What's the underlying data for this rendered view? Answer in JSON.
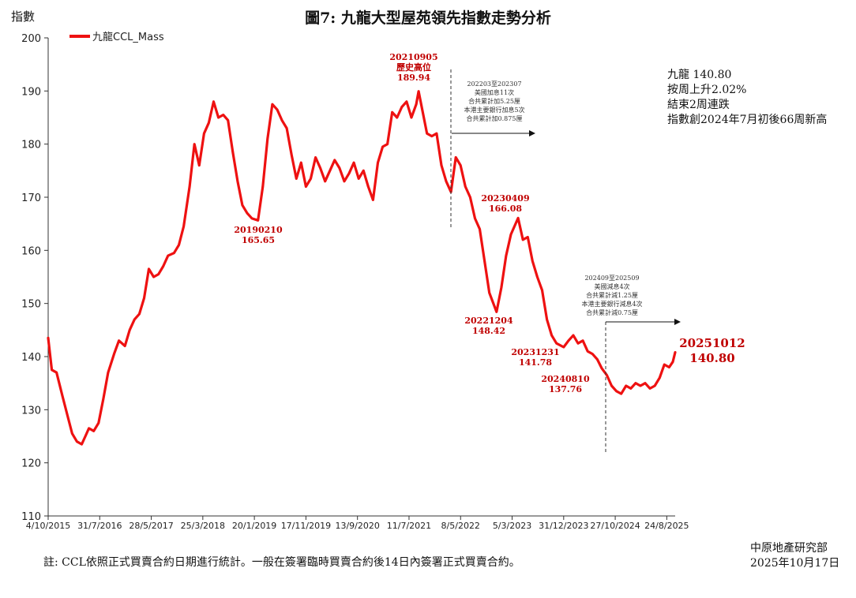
{
  "chart_data": {
    "type": "line",
    "title": "圖7: 九龍大型屋苑領先指數走勢分析",
    "ylabel": "指數",
    "ylim": [
      110,
      200
    ],
    "yticks": [
      110,
      120,
      130,
      140,
      150,
      160,
      170,
      180,
      190,
      200
    ],
    "xticks": [
      "4/10/2015",
      "31/7/2016",
      "28/5/2017",
      "25/3/2018",
      "20/1/2019",
      "17/11/2019",
      "13/9/2020",
      "11/7/2021",
      "8/5/2022",
      "5/3/2023",
      "31/12/2023",
      "27/10/2024",
      "24/8/2025"
    ],
    "xlim": [
      "2015-10-04",
      "2025-10-12"
    ],
    "grid": false,
    "legend_position": "top-left",
    "series": [
      {
        "name": "九龍CCL_Mass",
        "color": "#ee1111",
        "points": [
          [
            "2015-10-04",
            143.5
          ],
          [
            "2015-10-25",
            137.5
          ],
          [
            "2015-11-22",
            137.0
          ],
          [
            "2015-12-27",
            132.5
          ],
          [
            "2016-01-24",
            129.0
          ],
          [
            "2016-02-21",
            125.5
          ],
          [
            "2016-03-20",
            124.0
          ],
          [
            "2016-04-17",
            123.5
          ],
          [
            "2016-05-08",
            125.0
          ],
          [
            "2016-05-29",
            126.5
          ],
          [
            "2016-06-26",
            126.0
          ],
          [
            "2016-07-24",
            127.5
          ],
          [
            "2016-08-21",
            132.0
          ],
          [
            "2016-09-18",
            137.0
          ],
          [
            "2016-10-23",
            140.5
          ],
          [
            "2016-11-20",
            143.0
          ],
          [
            "2016-12-25",
            142.0
          ],
          [
            "2017-01-22",
            145.0
          ],
          [
            "2017-02-19",
            147.0
          ],
          [
            "2017-03-19",
            148.0
          ],
          [
            "2017-04-16",
            151.0
          ],
          [
            "2017-05-14",
            156.5
          ],
          [
            "2017-06-11",
            155.0
          ],
          [
            "2017-07-09",
            155.5
          ],
          [
            "2017-08-06",
            157.0
          ],
          [
            "2017-09-03",
            159.0
          ],
          [
            "2017-10-08",
            159.5
          ],
          [
            "2017-11-05",
            161.0
          ],
          [
            "2017-12-03",
            164.5
          ],
          [
            "2018-01-07",
            172.0
          ],
          [
            "2018-02-04",
            180.0
          ],
          [
            "2018-03-04",
            176.0
          ],
          [
            "2018-04-01",
            182.0
          ],
          [
            "2018-04-29",
            184.0
          ],
          [
            "2018-05-27",
            188.0
          ],
          [
            "2018-06-24",
            185.0
          ],
          [
            "2018-07-22",
            185.5
          ],
          [
            "2018-08-19",
            184.5
          ],
          [
            "2018-09-16",
            178.5
          ],
          [
            "2018-10-14",
            173.0
          ],
          [
            "2018-11-11",
            168.5
          ],
          [
            "2018-12-09",
            167.0
          ],
          [
            "2019-01-06",
            166.0
          ],
          [
            "2019-02-10",
            165.65
          ],
          [
            "2019-03-10",
            172.0
          ],
          [
            "2019-04-07",
            181.0
          ],
          [
            "2019-05-05",
            187.5
          ],
          [
            "2019-06-02",
            186.5
          ],
          [
            "2019-06-30",
            184.5
          ],
          [
            "2019-07-28",
            183.0
          ],
          [
            "2019-08-25",
            178.0
          ],
          [
            "2019-09-22",
            173.5
          ],
          [
            "2019-10-20",
            176.5
          ],
          [
            "2019-11-17",
            172.0
          ],
          [
            "2019-12-15",
            173.5
          ],
          [
            "2020-01-12",
            177.5
          ],
          [
            "2020-02-09",
            175.5
          ],
          [
            "2020-03-08",
            173.0
          ],
          [
            "2020-04-05",
            175.0
          ],
          [
            "2020-05-03",
            177.0
          ],
          [
            "2020-05-31",
            175.5
          ],
          [
            "2020-06-28",
            173.0
          ],
          [
            "2020-07-26",
            174.5
          ],
          [
            "2020-08-23",
            176.5
          ],
          [
            "2020-09-20",
            173.5
          ],
          [
            "2020-10-18",
            175.0
          ],
          [
            "2020-11-15",
            172.0
          ],
          [
            "2020-12-13",
            169.5
          ],
          [
            "2021-01-10",
            176.5
          ],
          [
            "2021-02-07",
            179.5
          ],
          [
            "2021-03-07",
            180.0
          ],
          [
            "2021-04-04",
            186.0
          ],
          [
            "2021-05-02",
            185.0
          ],
          [
            "2021-05-30",
            187.0
          ],
          [
            "2021-06-27",
            188.0
          ],
          [
            "2021-07-25",
            185.0
          ],
          [
            "2021-08-22",
            187.5
          ],
          [
            "2021-09-05",
            189.94
          ],
          [
            "2021-09-26",
            186.5
          ],
          [
            "2021-10-24",
            182.0
          ],
          [
            "2021-11-21",
            181.5
          ],
          [
            "2021-12-19",
            182.0
          ],
          [
            "2022-01-16",
            176.0
          ],
          [
            "2022-02-13",
            173.0
          ],
          [
            "2022-03-13",
            171.0
          ],
          [
            "2022-04-10",
            177.5
          ],
          [
            "2022-05-08",
            176.0
          ],
          [
            "2022-06-05",
            172.0
          ],
          [
            "2022-07-03",
            170.0
          ],
          [
            "2022-07-31",
            166.0
          ],
          [
            "2022-08-28",
            164.0
          ],
          [
            "2022-09-25",
            158.0
          ],
          [
            "2022-10-23",
            152.0
          ],
          [
            "2022-12-04",
            148.42
          ],
          [
            "2023-01-01",
            153.0
          ],
          [
            "2023-01-29",
            159.0
          ],
          [
            "2023-02-26",
            163.0
          ],
          [
            "2023-04-09",
            166.08
          ],
          [
            "2023-05-07",
            162.0
          ],
          [
            "2023-06-04",
            162.5
          ],
          [
            "2023-07-02",
            158.0
          ],
          [
            "2023-07-30",
            155.0
          ],
          [
            "2023-08-27",
            152.5
          ],
          [
            "2023-09-24",
            147.0
          ],
          [
            "2023-10-22",
            144.0
          ],
          [
            "2023-11-19",
            142.5
          ],
          [
            "2023-12-31",
            141.78
          ],
          [
            "2024-01-28",
            143.0
          ],
          [
            "2024-02-25",
            144.0
          ],
          [
            "2024-03-24",
            142.5
          ],
          [
            "2024-04-21",
            143.0
          ],
          [
            "2024-05-19",
            141.0
          ],
          [
            "2024-06-16",
            140.5
          ],
          [
            "2024-07-14",
            139.5
          ],
          [
            "2024-08-10",
            137.76
          ],
          [
            "2024-09-08",
            136.5
          ],
          [
            "2024-10-06",
            134.5
          ],
          [
            "2024-11-03",
            133.5
          ],
          [
            "2024-12-01",
            133.0
          ],
          [
            "2024-12-29",
            134.5
          ],
          [
            "2025-01-26",
            134.0
          ],
          [
            "2025-02-23",
            135.0
          ],
          [
            "2025-03-23",
            134.5
          ],
          [
            "2025-04-20",
            135.0
          ],
          [
            "2025-05-18",
            134.0
          ],
          [
            "2025-06-15",
            134.5
          ],
          [
            "2025-07-13",
            136.0
          ],
          [
            "2025-08-10",
            138.5
          ],
          [
            "2025-09-07",
            138.0
          ],
          [
            "2025-09-28",
            139.0
          ],
          [
            "2025-10-12",
            140.8
          ]
        ]
      }
    ],
    "annotations": [
      {
        "date": "2021-09-05",
        "lines": [
          "20210905",
          "歷史高位",
          "189.94"
        ],
        "color": "#c00000"
      },
      {
        "date": "2019-02-10",
        "lines": [
          "20190210",
          "165.65"
        ],
        "color": "#c00000"
      },
      {
        "date": "2023-04-09",
        "lines": [
          "20230409",
          "166.08"
        ],
        "color": "#c00000"
      },
      {
        "date": "2022-12-04",
        "lines": [
          "20221204",
          "148.42"
        ],
        "color": "#c00000"
      },
      {
        "date": "2023-12-31",
        "lines": [
          "20231231",
          "141.78"
        ],
        "color": "#c00000"
      },
      {
        "date": "2024-08-10",
        "lines": [
          "20240810",
          "137.76"
        ],
        "color": "#c00000"
      },
      {
        "date": "2025-10-12",
        "lines": [
          "20251012",
          "140.80"
        ],
        "color": "#c00000"
      }
    ],
    "events": [
      {
        "lines": [
          "202203至202307",
          "美國加息11次",
          "合共累計加5.25厘",
          "本港主要銀行加息5次",
          "合共累計加0.875厘"
        ]
      },
      {
        "lines": [
          "202409至202509",
          "美國減息4次",
          "合共累計減1.25厘",
          "本港主要銀行減息4次",
          "合共累計減0.75厘"
        ]
      }
    ]
  },
  "summary": [
    "九龍 140.80",
    "按周上升2.02%",
    "結束2周連跌",
    "指數創2024年7月初後66周新高"
  ],
  "note": "註: CCL依照正式買賣合約日期進行統計。一般在簽署臨時買賣合約後14日內簽署正式買賣合約。",
  "source": [
    "中原地產研究部",
    "2025年10月17日"
  ]
}
